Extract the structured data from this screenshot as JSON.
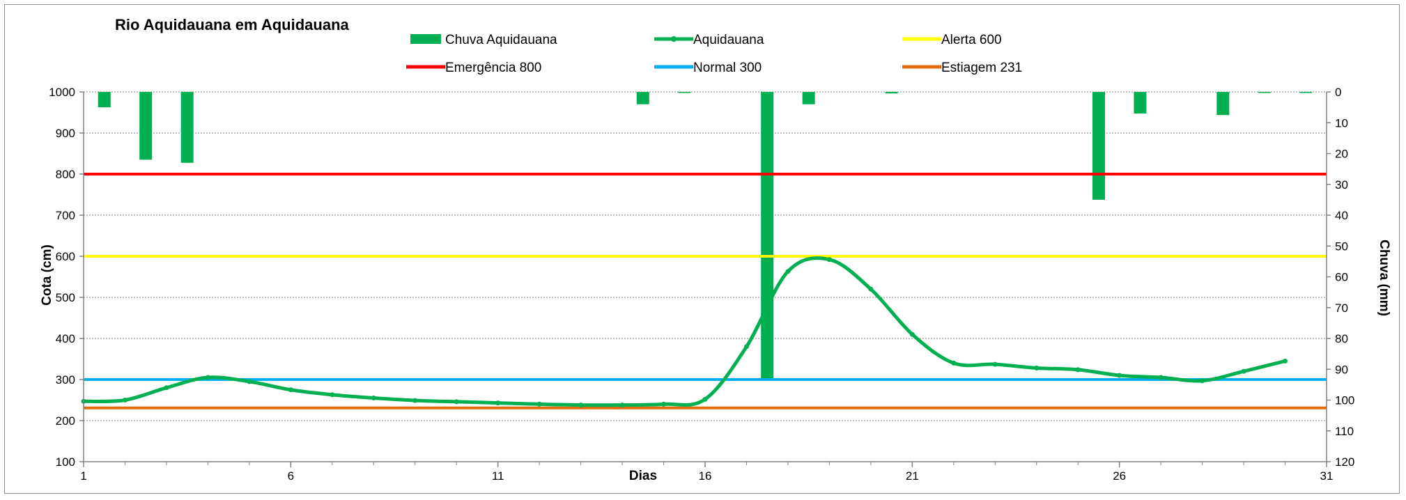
{
  "chart_data": {
    "type": "bar+line",
    "title": "Rio Aquidauana em Aquidauana",
    "xlabel": "Dias",
    "ylabel_left": "Cota  (cm)",
    "ylabel_right": "Chuva (mm)",
    "x_range": [
      1,
      31
    ],
    "x_ticks": [
      1,
      6,
      11,
      16,
      21,
      26,
      31
    ],
    "y_left_range": [
      100,
      1000
    ],
    "y_left_ticks": [
      100,
      200,
      300,
      400,
      500,
      600,
      700,
      800,
      900,
      1000
    ],
    "y_right_range": [
      0,
      120
    ],
    "y_right_reversed": true,
    "y_right_ticks": [
      0,
      10,
      20,
      30,
      40,
      50,
      60,
      70,
      80,
      90,
      100,
      110,
      120
    ],
    "grid": "horizontal dotted",
    "legend_placement": "top",
    "series": [
      {
        "name": "Chuva Aquidauana",
        "kind": "bar",
        "axis": "right",
        "color": "#00b050",
        "x": [
          1.5,
          2.5,
          3.5,
          14.5,
          15.5,
          17.5,
          18.5,
          20.5,
          25.5,
          26.5,
          28.5,
          29.5,
          30.5
        ],
        "values": [
          5,
          22,
          23,
          4,
          0.3,
          93,
          4,
          0.5,
          35,
          7,
          7.5,
          0.3,
          0.3
        ]
      },
      {
        "name": "Aquidauana",
        "kind": "line",
        "axis": "left",
        "color": "#00b050",
        "x": [
          1,
          2,
          3,
          4,
          5,
          6,
          7,
          8,
          9,
          10,
          11,
          12,
          13,
          14,
          15,
          16,
          17,
          18,
          19,
          20,
          21,
          22,
          23,
          24,
          25,
          26,
          27,
          28,
          29,
          30
        ],
        "values": [
          247,
          250,
          280,
          305,
          295,
          275,
          263,
          255,
          249,
          246,
          243,
          240,
          238,
          238,
          240,
          252,
          380,
          563,
          592,
          520,
          410,
          340,
          337,
          328,
          324,
          310,
          305,
          297,
          320,
          345
        ]
      },
      {
        "name": "Alerta 600",
        "kind": "reference",
        "axis": "left",
        "color": "#ffff00",
        "value": 600
      },
      {
        "name": "Emergência 800",
        "kind": "reference",
        "axis": "left",
        "color": "#ff0000",
        "value": 800
      },
      {
        "name": "Normal  300",
        "kind": "reference",
        "axis": "left",
        "color": "#00b0f0",
        "value": 300
      },
      {
        "name": "Estiagem 231",
        "kind": "reference",
        "axis": "left",
        "color": "#e46c0a",
        "value": 231
      }
    ]
  }
}
